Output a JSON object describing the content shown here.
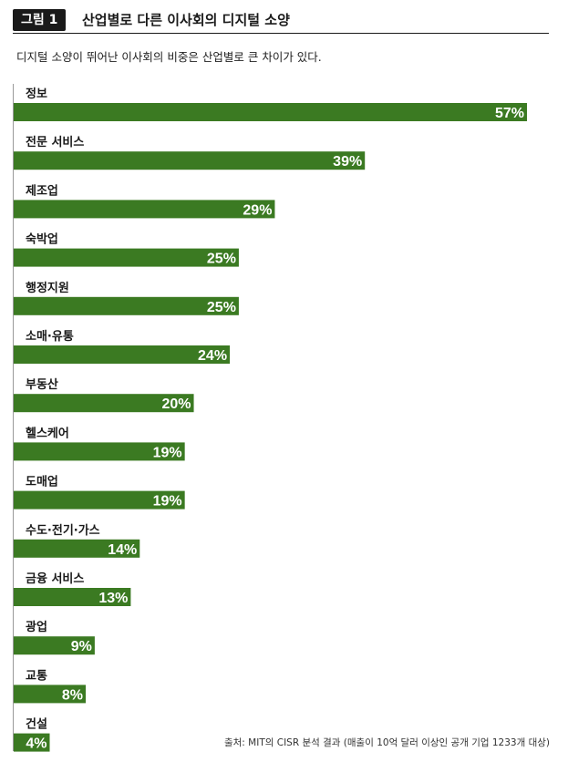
{
  "figure": {
    "label": "그림 1",
    "title": "산업별로 다른 이사회의 디지털 소양",
    "subtitle": "디지털 소양이 뛰어난 이사회의 비중은 산업별로 큰 차이가 있다."
  },
  "source": "출처: MIT의 CISR 분석 결과 (매출이 10억 달러 이상인 공개 기업 1233개 대상)",
  "colors": {
    "bar": "#3b7a22",
    "value_text": "#ffffff",
    "label_text": "#1a1a1a"
  },
  "chart_data": {
    "type": "bar",
    "orientation": "horizontal",
    "categories": [
      "정보",
      "전문 서비스",
      "제조업",
      "숙박업",
      "행정지원",
      "소매·유통",
      "부동산",
      "헬스케어",
      "도매업",
      "수도·전기·가스",
      "금융 서비스",
      "광업",
      "교통",
      "건설"
    ],
    "values": [
      57,
      39,
      29,
      25,
      25,
      24,
      20,
      19,
      19,
      14,
      13,
      9,
      8,
      4
    ],
    "data_labels": [
      "57%",
      "39%",
      "29%",
      "25%",
      "25%",
      "24%",
      "20%",
      "19%",
      "19%",
      "14%",
      "13%",
      "9%",
      "8%",
      "4%"
    ],
    "xlim": [
      0,
      57
    ],
    "grid": false,
    "legend": "none"
  }
}
